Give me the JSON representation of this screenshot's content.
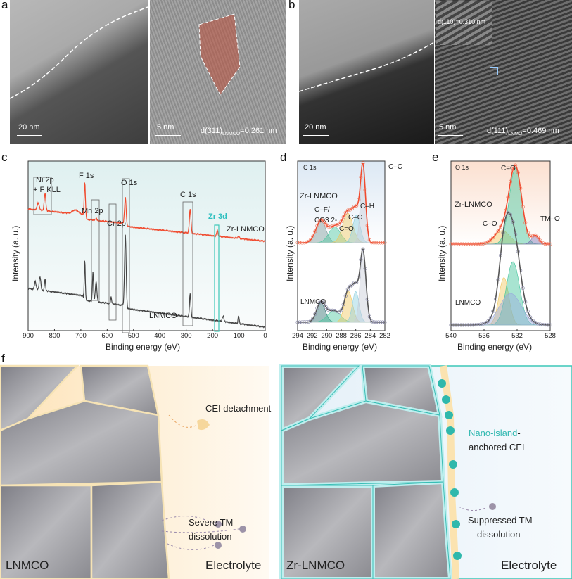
{
  "panels": {
    "a": "a",
    "b": "b",
    "c": "c",
    "d": "d",
    "e": "e",
    "f": "f"
  },
  "tem": {
    "a1_scale": "20 nm",
    "a2_scale": "5 nm",
    "a2_d": "d(311)",
    "a2_sub": "LNMCO",
    "a2_val": "=0.261 nm",
    "b1_scale": "20 nm",
    "b2_scale": "5 nm",
    "b2_d": "d(111)",
    "b2_sub": "LNMO",
    "b2_val": "=0.469 nm",
    "b_inset": "d(110)=0.310 nm"
  },
  "chart_data": [
    {
      "type": "line",
      "id": "c",
      "xlabel": "Binding energy (eV)",
      "ylabel": "Intensity (a. u.)",
      "xlim": [
        900,
        0
      ],
      "ticks": [
        900,
        800,
        700,
        600,
        500,
        400,
        300,
        200,
        100,
        0
      ],
      "labels": {
        "ni": "Ni 2p",
        "nif": "+ F KLL",
        "f": "F 1s",
        "mn": "Mn 2p",
        "cr": "Cr 2p",
        "o": "O 1s",
        "c": "C 1s",
        "zr": "Zr 3d"
      },
      "series": [
        {
          "name": "Zr-LNMCO",
          "color": "#f04a2e",
          "peaks": [
            [
              862,
              0.18,
              4
            ],
            [
              836,
              0.45,
              3
            ],
            [
              720,
              0.1,
              12
            ],
            [
              685,
              0.95,
              2.5
            ],
            [
              642,
              0.05,
              3
            ],
            [
              531,
              0.75,
              3
            ],
            [
              285,
              0.62,
              3
            ],
            [
              182,
              0.15,
              2.5
            ],
            [
              101,
              0.05,
              3
            ]
          ]
        },
        {
          "name": "LNMCO",
          "color": "#444",
          "peaks": [
            [
              873,
              0.12,
              3
            ],
            [
              855,
              0.2,
              3
            ],
            [
              836,
              0.18,
              2
            ],
            [
              685,
              0.6,
              2
            ],
            [
              654,
              0.45,
              2
            ],
            [
              642,
              0.3,
              3
            ],
            [
              585,
              0.1,
              2
            ],
            [
              531,
              1.1,
              3
            ],
            [
              285,
              0.35,
              2.5
            ],
            [
              160,
              0.08,
              3
            ],
            [
              101,
              0.12,
              2
            ]
          ]
        }
      ]
    },
    {
      "type": "line",
      "id": "d",
      "title": "C 1s",
      "xlabel": "Binding energy (eV)",
      "ylabel": "Intensity (a. u.)",
      "xlim": [
        294,
        282
      ],
      "ticks": [
        294,
        292,
        290,
        288,
        286,
        284,
        282
      ],
      "components": [
        "C–F/",
        "CO3 2-",
        "C=O",
        "C–O",
        "C–H",
        "C–C"
      ],
      "series": [
        {
          "name": "Zr-LNMCO",
          "color": "#f04a2e",
          "peaks": [
            [
              290.8,
              0.22,
              0.7,
              "#7a9a9a"
            ],
            [
              288.9,
              0.16,
              0.8,
              "#4cc7a0"
            ],
            [
              287.1,
              0.3,
              0.7,
              "#f0c860"
            ],
            [
              285.9,
              0.28,
              0.5,
              "#8fd0e0"
            ],
            [
              285.0,
              0.75,
              0.35,
              "#c8ccd8"
            ]
          ]
        },
        {
          "name": "LNMCO",
          "color": "#555",
          "peaks": [
            [
              290.8,
              0.22,
              0.6,
              "#2f6f6f"
            ],
            [
              289.0,
              0.13,
              0.9,
              "#4cc7a0"
            ],
            [
              287.0,
              0.35,
              0.55,
              "#f0c860"
            ],
            [
              286.0,
              0.35,
              0.45,
              "#8fd0e0"
            ],
            [
              285.0,
              0.8,
              0.4,
              "#c8ccd8"
            ]
          ]
        }
      ]
    },
    {
      "type": "line",
      "id": "e",
      "title": "O 1s",
      "xlabel": "Binding energy (eV)",
      "ylabel": "Intensity (a. u.)",
      "xlim": [
        540,
        528
      ],
      "ticks": [
        540,
        536,
        532,
        528
      ],
      "components": [
        "C=O",
        "C–O",
        "TM–O"
      ],
      "series": [
        {
          "name": "Zr-LNMCO",
          "color": "#f04a2e",
          "peaks": [
            [
              533.8,
              0.16,
              0.9,
              "#f0c860"
            ],
            [
              532.2,
              0.9,
              0.75,
              "#3fc49a"
            ],
            [
              529.8,
              0.1,
              0.45,
              "#7d6fb0"
            ]
          ]
        },
        {
          "name": "LNMCO",
          "color": "#555",
          "peaks": [
            [
              533.6,
              0.45,
              0.6,
              "#f0c860"
            ],
            [
              532.5,
              0.6,
              0.8,
              "#3fc49a"
            ],
            [
              532.8,
              0.3,
              1.3,
              "#9ad"
            ]
          ]
        }
      ]
    }
  ],
  "schematic": {
    "left": {
      "cei": "CEI detachment",
      "tm1": "Severe TM",
      "tm2": "dissolution",
      "cathode": "LNMCO",
      "electrolyte": "Electrolyte"
    },
    "right": {
      "nano": "Nano-island",
      "nano_rest": "-",
      "anchored": "anchored CEI",
      "tm1": "Suppressed TM",
      "tm2": "dissolution",
      "cathode": "Zr-LNMCO",
      "electrolyte": "Electrolyte"
    },
    "colors": {
      "teal": "#3cc7b8",
      "electrolyte": "#fde9c4",
      "grain": "#9a9aa0"
    }
  }
}
